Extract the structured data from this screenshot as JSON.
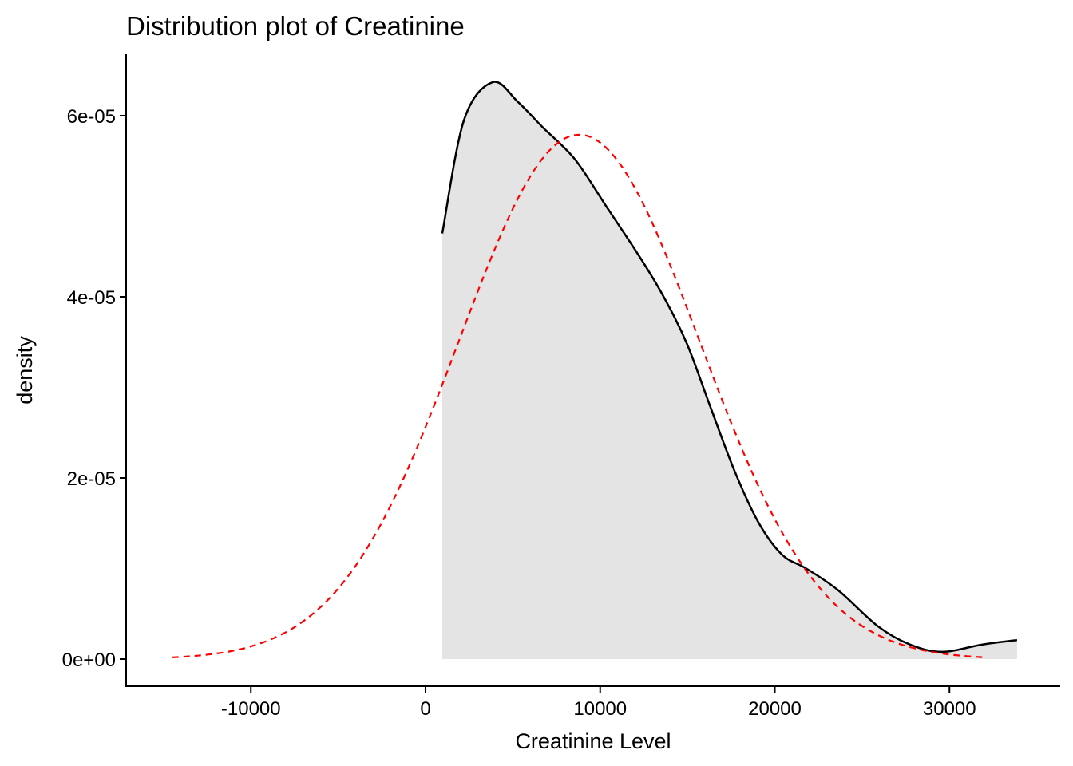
{
  "chart_data": {
    "type": "area",
    "title": "Distribution plot of Creatinine",
    "xlabel": "Creatinine Level",
    "ylabel": "density",
    "xlim": [
      -16500,
      36000
    ],
    "ylim": [
      -3e-06,
      6.7e-05
    ],
    "x_ticks": [
      -10000,
      0,
      10000,
      20000,
      30000
    ],
    "x_tick_labels": [
      "-10000",
      "0",
      "10000",
      "20000",
      "30000"
    ],
    "y_ticks": [
      0,
      2e-05,
      4e-05,
      6e-05
    ],
    "y_tick_labels": [
      "0e+00",
      "2e-05",
      "4e-05",
      "6e-05"
    ],
    "grid": false,
    "series": [
      {
        "name": "density",
        "style": "solid",
        "color": "#000000",
        "fill": "#e4e4e4",
        "x": [
          960,
          2200,
          3840,
          5300,
          6720,
          8550,
          10380,
          12200,
          13580,
          14950,
          16320,
          17690,
          19060,
          20430,
          21800,
          23630,
          25920,
          27750,
          29580,
          31860,
          33870
        ],
        "y": [
          4.7e-05,
          5.95e-05,
          6.37e-05,
          6.15e-05,
          5.87e-05,
          5.52e-05,
          4.99e-05,
          4.46e-05,
          4.02e-05,
          3.49e-05,
          2.78e-05,
          2.08e-05,
          1.51e-05,
          1.15e-05,
          1e-05,
          7.6e-06,
          3.6e-06,
          1.6e-06,
          8e-07,
          1.6e-06,
          2.1e-06
        ]
      },
      {
        "name": "normal fit",
        "style": "dashed",
        "color": "#ff0000",
        "mean": 8800,
        "sd": 6890,
        "x_range": [
          -14500,
          32000
        ]
      }
    ]
  }
}
